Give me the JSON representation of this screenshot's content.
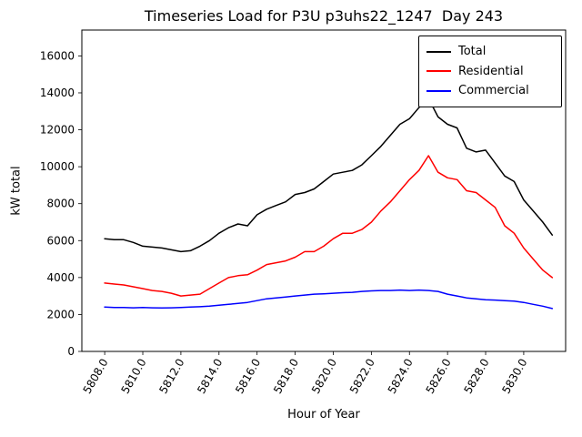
{
  "figure": {
    "title": "Timeseries Load for P3U p3uhs22_1247  Day 243",
    "xlabel": "Hour of Year",
    "ylabel": "kW total"
  },
  "chart_data": {
    "type": "line",
    "title": "Timeseries Load for P3U p3uhs22_1247  Day 243",
    "xlabel": "Hour of Year",
    "ylabel": "kW total",
    "xlim": [
      5806.8,
      5832.2
    ],
    "ylim": [
      0,
      17400
    ],
    "xticks": [
      5808,
      5810,
      5812,
      5814,
      5816,
      5818,
      5820,
      5822,
      5824,
      5826,
      5828,
      5830
    ],
    "xtick_labels": [
      "5808.0",
      "5810.0",
      "5812.0",
      "5814.0",
      "5816.0",
      "5818.0",
      "5820.0",
      "5822.0",
      "5824.0",
      "5826.0",
      "5828.0",
      "5830.0"
    ],
    "yticks": [
      0,
      2000,
      4000,
      6000,
      8000,
      10000,
      12000,
      14000,
      16000
    ],
    "ytick_labels": [
      "0",
      "2000",
      "4000",
      "6000",
      "8000",
      "10000",
      "12000",
      "14000",
      "16000"
    ],
    "legend_position": "upper right",
    "grid": false,
    "x": [
      5808.0,
      5808.5,
      5809.0,
      5809.5,
      5810.0,
      5810.5,
      5811.0,
      5811.5,
      5812.0,
      5812.5,
      5813.0,
      5813.5,
      5814.0,
      5814.5,
      5815.0,
      5815.5,
      5816.0,
      5816.5,
      5817.0,
      5817.5,
      5818.0,
      5818.5,
      5819.0,
      5819.5,
      5820.0,
      5820.5,
      5821.0,
      5821.5,
      5822.0,
      5822.5,
      5823.0,
      5823.5,
      5824.0,
      5824.5,
      5825.0,
      5825.5,
      5826.0,
      5826.5,
      5827.0,
      5827.5,
      5828.0,
      5828.5,
      5829.0,
      5829.5,
      5830.0,
      5830.5,
      5831.0,
      5831.5
    ],
    "series": [
      {
        "name": "Total",
        "color": "#000000",
        "values": [
          6100,
          6050,
          6050,
          5900,
          5700,
          5650,
          5600,
          5500,
          5400,
          5450,
          5700,
          6000,
          6400,
          6700,
          6900,
          6800,
          7400,
          7700,
          7900,
          8100,
          8500,
          8600,
          8800,
          9200,
          9600,
          9700,
          9800,
          10100,
          10600,
          11100,
          11700,
          12300,
          12600,
          13200,
          13700,
          12700,
          12300,
          12100,
          11000,
          10800,
          10900,
          10200,
          9500,
          9200,
          8200,
          7600,
          7000,
          6300
        ]
      },
      {
        "name": "Residential",
        "color": "#ff0000",
        "values": [
          3700,
          3650,
          3600,
          3500,
          3400,
          3300,
          3250,
          3150,
          3000,
          3050,
          3100,
          3400,
          3700,
          4000,
          4100,
          4150,
          4400,
          4700,
          4800,
          4900,
          5100,
          5400,
          5400,
          5700,
          6100,
          6400,
          6400,
          6600,
          7000,
          7600,
          8100,
          8700,
          9300,
          9800,
          10600,
          9700,
          9400,
          9300,
          8700,
          8600,
          8200,
          7800,
          6800,
          6400,
          5600,
          5000,
          4400,
          4000
        ]
      },
      {
        "name": "Commercial",
        "color": "#0000ff",
        "values": [
          2400,
          2380,
          2380,
          2360,
          2380,
          2360,
          2350,
          2360,
          2380,
          2400,
          2420,
          2450,
          2500,
          2550,
          2600,
          2650,
          2750,
          2850,
          2900,
          2950,
          3000,
          3050,
          3100,
          3120,
          3150,
          3180,
          3200,
          3250,
          3280,
          3300,
          3300,
          3320,
          3300,
          3320,
          3300,
          3250,
          3100,
          3000,
          2900,
          2850,
          2800,
          2780,
          2750,
          2720,
          2650,
          2550,
          2450,
          2320
        ]
      }
    ]
  }
}
